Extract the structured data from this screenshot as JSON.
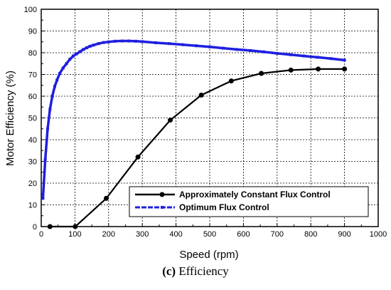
{
  "chart_data": {
    "type": "line",
    "xlabel": "Speed (rpm)",
    "ylabel": "Motor Efficiency (%)",
    "xlim": [
      0,
      1000
    ],
    "ylim": [
      0,
      100
    ],
    "xticks": [
      0,
      100,
      200,
      300,
      400,
      500,
      600,
      700,
      800,
      900,
      1000
    ],
    "yticks": [
      0,
      10,
      20,
      30,
      40,
      50,
      60,
      70,
      80,
      90,
      100
    ],
    "grid": true,
    "legend_position": "bottom-right",
    "series": [
      {
        "name": "Approximately Constant Flux Control",
        "color": "#000000",
        "marker": "circle",
        "x": [
          26,
          101,
          193,
          287,
          383,
          475,
          564,
          653,
          741,
          822,
          900
        ],
        "y": [
          0,
          0,
          13,
          32,
          49,
          60.5,
          67,
          70.5,
          72,
          72.5,
          72.5
        ]
      },
      {
        "name": "Optimum Flux Control",
        "color": "#1f1fdf",
        "marker": "square",
        "x": [
          5,
          12,
          19,
          26,
          33,
          40,
          47,
          55,
          65,
          75,
          85,
          95,
          105,
          115,
          125,
          135,
          145,
          155,
          170,
          185,
          200,
          220,
          240,
          260,
          280,
          300,
          340,
          380,
          420,
          460,
          500,
          540,
          580,
          620,
          660,
          700,
          740,
          780,
          820,
          860,
          900
        ],
        "y": [
          13,
          31,
          45,
          54,
          60,
          64.5,
          67.5,
          70.5,
          73,
          75,
          77,
          78.5,
          79.5,
          80.5,
          81.5,
          82.3,
          83,
          83.5,
          84.2,
          84.7,
          85,
          85.3,
          85.4,
          85.4,
          85.3,
          85.1,
          84.6,
          84.2,
          83.7,
          83.2,
          82.7,
          82.1,
          81.5,
          81,
          80.4,
          79.7,
          79.1,
          78.5,
          77.9,
          77.3,
          76.6
        ]
      }
    ]
  },
  "caption": {
    "label": "(c)",
    "text": " Efficiency"
  }
}
